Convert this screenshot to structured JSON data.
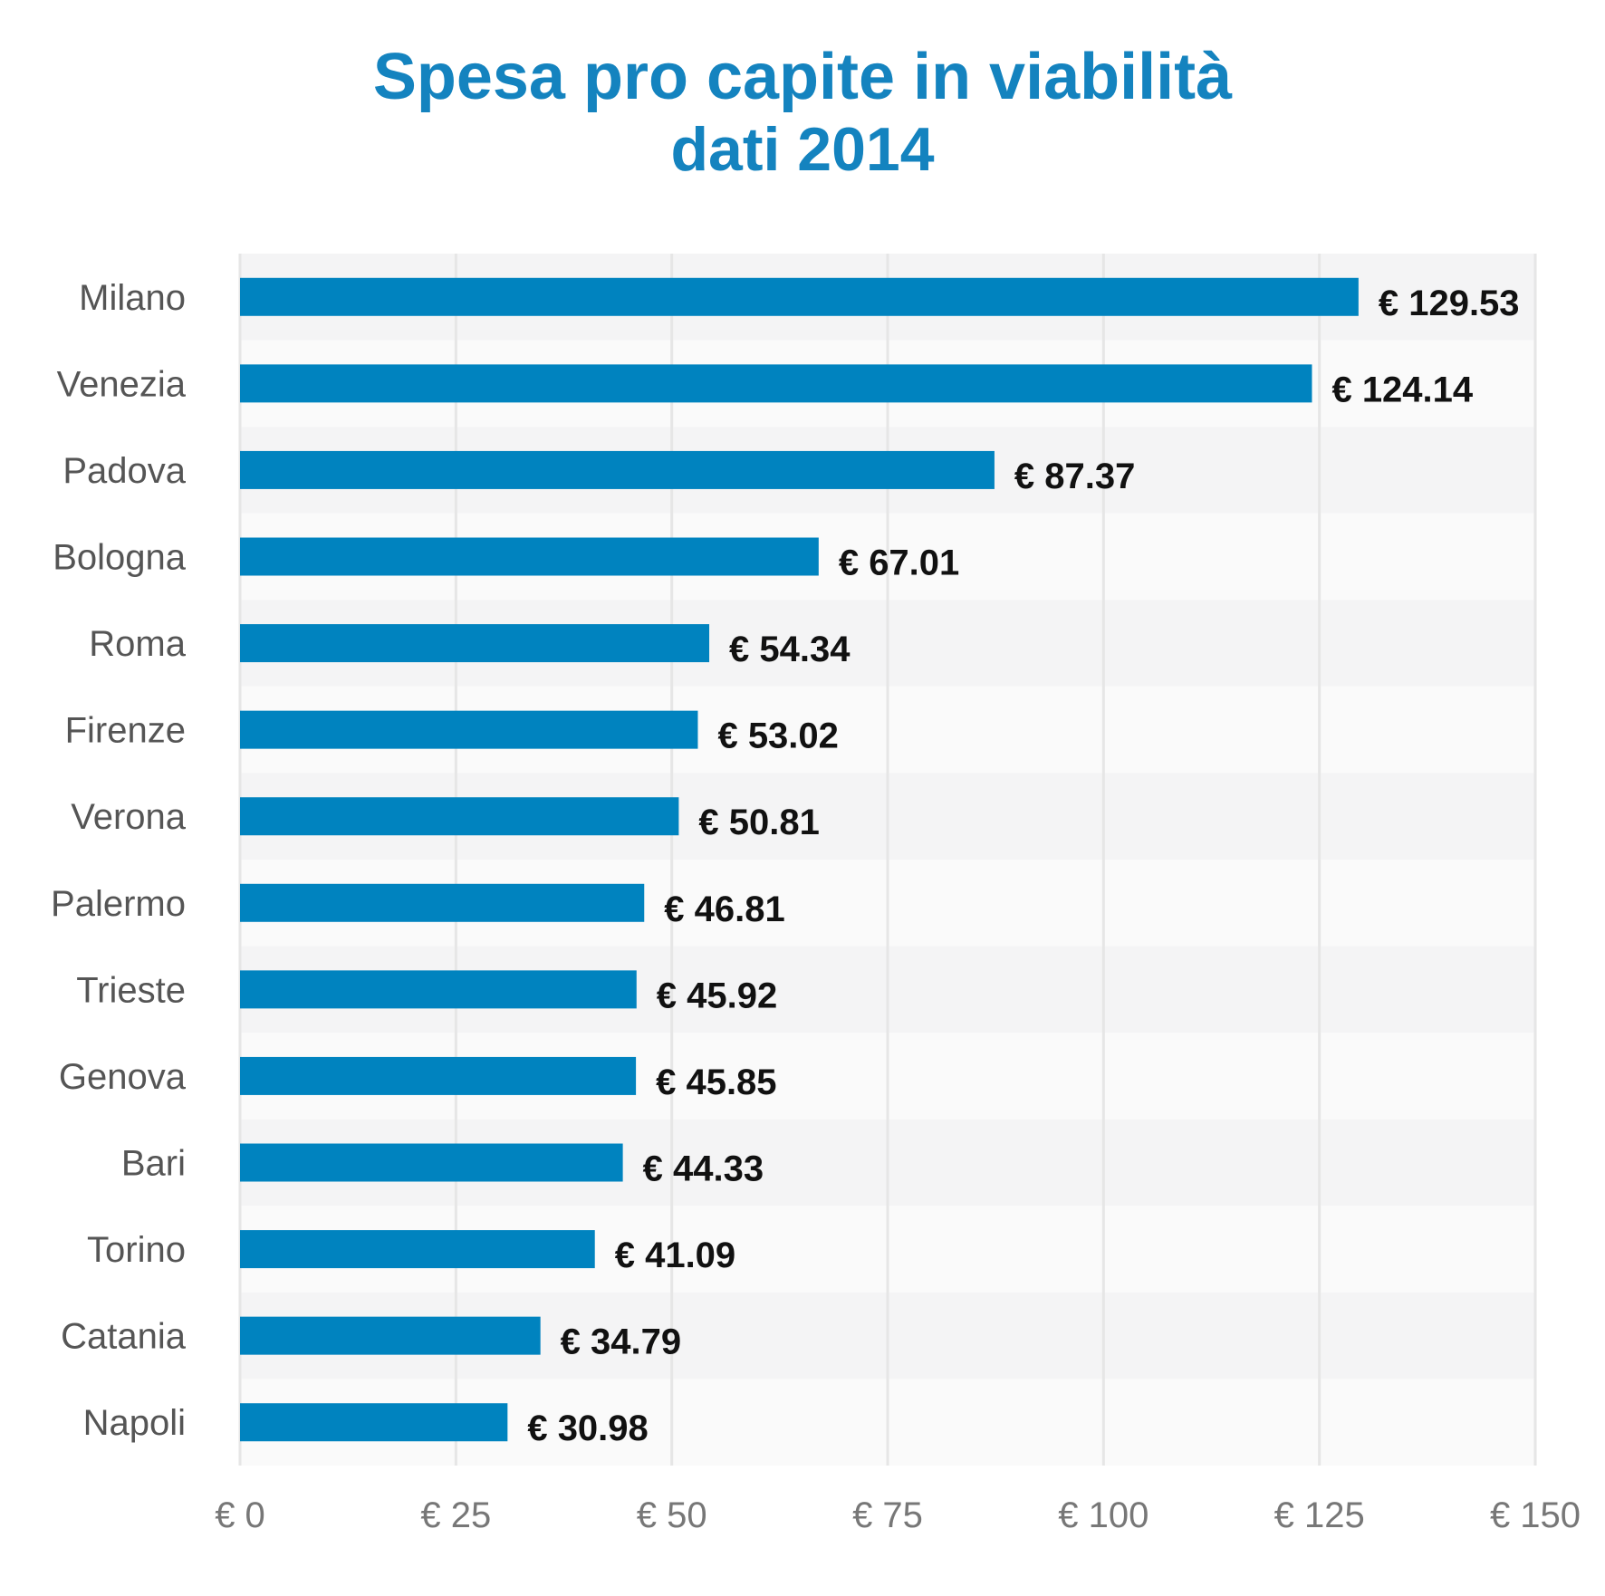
{
  "chart_data": {
    "type": "bar",
    "orientation": "horizontal",
    "title": "Spesa pro capite in viabilità",
    "subtitle": "dati 2014",
    "xlabel": "",
    "ylabel": "",
    "categories": [
      "Milano",
      "Venezia",
      "Padova",
      "Bologna",
      "Roma",
      "Firenze",
      "Verona",
      "Palermo",
      "Trieste",
      "Genova",
      "Bari",
      "Torino",
      "Catania",
      "Napoli"
    ],
    "values": [
      129.53,
      124.14,
      87.37,
      67.01,
      54.34,
      53.02,
      50.81,
      46.81,
      45.92,
      45.85,
      44.33,
      41.09,
      34.79,
      30.98
    ],
    "value_labels": [
      "€ 129.53",
      "€ 124.14",
      "€ 87.37",
      "€ 67.01",
      "€ 54.34",
      "€ 53.02",
      "€ 50.81",
      "€ 46.81",
      "€ 45.92",
      "€ 45.85",
      "€ 44.33",
      "€ 41.09",
      "€ 34.79",
      "€ 30.98"
    ],
    "xlim": [
      0,
      150
    ],
    "ticks": [
      0,
      25,
      50,
      75,
      100,
      125,
      150
    ],
    "tick_labels": [
      "€ 0",
      "€ 25",
      "€ 50",
      "€ 75",
      "€ 100",
      "€ 125",
      "€ 150"
    ],
    "grid": true,
    "legend": "none",
    "colors": {
      "bar": "#0083bf",
      "title": "#1483bf",
      "band_a": "#f4f4f5",
      "band_b": "#fafafa",
      "grid": "#e6e6e6"
    }
  }
}
